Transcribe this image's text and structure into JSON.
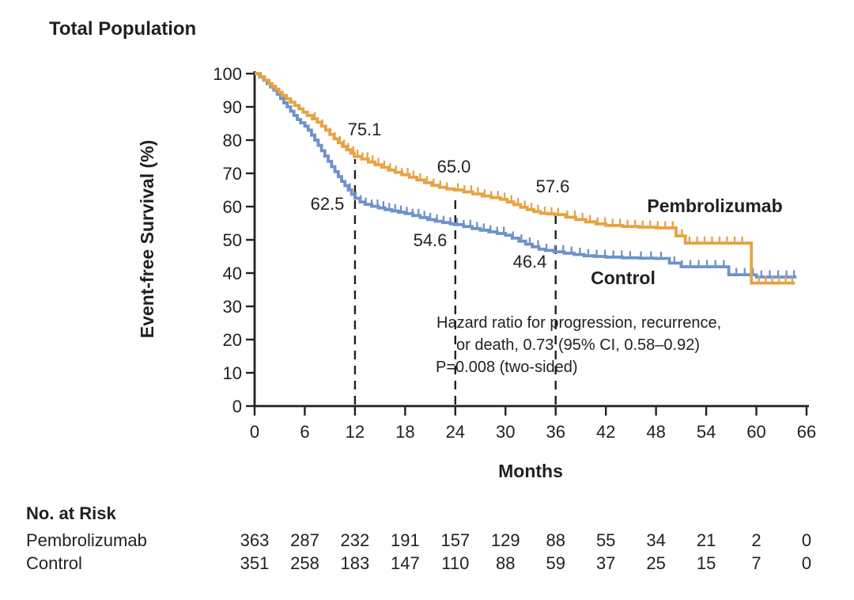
{
  "chart_data": {
    "type": "line",
    "subtype": "kaplan-meier-step",
    "title": "Total Population",
    "xlabel": "Months",
    "ylabel": "Event-free Survival (%)",
    "xlim": [
      0,
      66
    ],
    "ylim": [
      0,
      100
    ],
    "xticks": [
      0,
      6,
      12,
      18,
      24,
      30,
      36,
      42,
      48,
      54,
      60,
      66
    ],
    "yticks": [
      0,
      10,
      20,
      30,
      40,
      50,
      60,
      70,
      80,
      90,
      100
    ],
    "grid": false,
    "milestone_months": [
      12,
      24,
      36
    ],
    "ink_color": "#231f20",
    "series": [
      {
        "name": "Pembrolizumab",
        "color": "#E8A243",
        "milestone_values": [
          "75.1",
          "65.0",
          "57.6"
        ],
        "steps": [
          [
            0,
            100
          ],
          [
            0.7,
            99
          ],
          [
            1.2,
            98
          ],
          [
            1.7,
            97
          ],
          [
            2.1,
            96.2
          ],
          [
            2.5,
            95.3
          ],
          [
            2.9,
            94.4
          ],
          [
            3.3,
            93.4
          ],
          [
            3.8,
            92.4
          ],
          [
            4.3,
            91.4
          ],
          [
            4.8,
            90.4
          ],
          [
            5.3,
            89.4
          ],
          [
            5.8,
            88.4
          ],
          [
            6.3,
            87.4
          ],
          [
            6.9,
            86.4
          ],
          [
            7.5,
            85.4
          ],
          [
            8,
            84.2
          ],
          [
            8.5,
            83
          ],
          [
            9,
            81.7
          ],
          [
            9.5,
            80.4
          ],
          [
            10,
            79.2
          ],
          [
            10.5,
            78.1
          ],
          [
            11,
            77.1
          ],
          [
            11.5,
            76.1
          ],
          [
            11.9,
            75.1
          ],
          [
            12.8,
            74.3
          ],
          [
            13.6,
            73.4
          ],
          [
            14.4,
            72.6
          ],
          [
            15.2,
            71.8
          ],
          [
            16,
            71
          ],
          [
            16.8,
            70.3
          ],
          [
            17.6,
            69.6
          ],
          [
            18.5,
            68.8
          ],
          [
            19.4,
            68
          ],
          [
            20.3,
            67.2
          ],
          [
            21.2,
            66.4
          ],
          [
            22.1,
            65.8
          ],
          [
            23,
            65.3
          ],
          [
            23.9,
            65
          ],
          [
            25,
            64.4
          ],
          [
            26.1,
            63.8
          ],
          [
            27.2,
            63.2
          ],
          [
            28.3,
            62.7
          ],
          [
            29.4,
            62.2
          ],
          [
            30.2,
            61.4
          ],
          [
            31,
            60.6
          ],
          [
            31.8,
            59.8
          ],
          [
            32.6,
            59.1
          ],
          [
            33.4,
            58.5
          ],
          [
            34.2,
            58
          ],
          [
            35,
            57.8
          ],
          [
            35.9,
            57.6
          ],
          [
            37.2,
            56.8
          ],
          [
            38.4,
            56.1
          ],
          [
            39.6,
            55.4
          ],
          [
            40.8,
            54.8
          ],
          [
            42,
            54.3
          ],
          [
            44,
            54
          ],
          [
            46,
            53.8
          ],
          [
            48,
            53.6
          ],
          [
            50.4,
            51.2
          ],
          [
            51.5,
            49
          ],
          [
            59.4,
            37
          ],
          [
            64.6,
            37
          ]
        ],
        "censor_months": [
          7.2,
          8.1,
          9,
          9.6,
          10.2,
          10.7,
          11.2,
          11.8,
          12.3,
          12.9,
          13.5,
          14.1,
          14.8,
          15.5,
          16.2,
          16.9,
          17.6,
          18.3,
          19,
          19.8,
          20.6,
          21.4,
          22.2,
          23,
          24.3,
          25.1,
          25.9,
          26.7,
          27.5,
          28.3,
          29.1,
          29.9,
          30.7,
          31.5,
          32.3,
          33.1,
          33.9,
          34.7,
          35.5,
          36.3,
          37.4,
          38.3,
          39.2,
          40.1,
          41,
          41.9,
          42.8,
          43.7,
          44.6,
          45.5,
          46.4,
          47.3,
          48.2,
          49.1,
          50,
          51.1,
          52,
          52.9,
          53.8,
          54.7,
          55.6,
          56.5,
          57.4,
          58.3,
          60.3,
          61.1,
          61.9,
          62.7,
          63.5,
          64.3
        ]
      },
      {
        "name": "Control",
        "color": "#6E92CA",
        "milestone_values": [
          "62.5",
          "54.6",
          "46.4"
        ],
        "steps": [
          [
            0,
            100
          ],
          [
            0.6,
            99
          ],
          [
            1.1,
            98
          ],
          [
            1.5,
            97
          ],
          [
            1.9,
            96
          ],
          [
            2.3,
            95
          ],
          [
            2.7,
            93.8
          ],
          [
            3.1,
            92.5
          ],
          [
            3.5,
            91.2
          ],
          [
            3.9,
            90
          ],
          [
            4.3,
            88.7
          ],
          [
            4.7,
            87.4
          ],
          [
            5.1,
            86.2
          ],
          [
            5.5,
            85.2
          ],
          [
            6,
            84.2
          ],
          [
            6.4,
            83
          ],
          [
            6.8,
            81.5
          ],
          [
            7.2,
            80
          ],
          [
            7.6,
            78.4
          ],
          [
            8,
            76.8
          ],
          [
            8.4,
            75.2
          ],
          [
            8.8,
            73.6
          ],
          [
            9.2,
            72
          ],
          [
            9.6,
            70.5
          ],
          [
            10,
            69
          ],
          [
            10.4,
            67.6
          ],
          [
            10.8,
            66.3
          ],
          [
            11.2,
            65
          ],
          [
            11.6,
            63.7
          ],
          [
            12,
            62.5
          ],
          [
            12.6,
            61.4
          ],
          [
            13.2,
            60.7
          ],
          [
            14,
            60.1
          ],
          [
            14.8,
            59.6
          ],
          [
            15.6,
            59.1
          ],
          [
            16.4,
            58.7
          ],
          [
            17.2,
            58.3
          ],
          [
            18,
            57.9
          ],
          [
            18.9,
            57.3
          ],
          [
            19.8,
            56.7
          ],
          [
            20.7,
            56.1
          ],
          [
            21.6,
            55.6
          ],
          [
            22.5,
            55.2
          ],
          [
            23.4,
            54.8
          ],
          [
            23.9,
            54.6
          ],
          [
            25,
            54
          ],
          [
            26,
            53.4
          ],
          [
            27,
            52.9
          ],
          [
            28,
            52.4
          ],
          [
            29,
            51.9
          ],
          [
            30,
            51.4
          ],
          [
            30.8,
            50.5
          ],
          [
            31.6,
            49.6
          ],
          [
            32.4,
            48.7
          ],
          [
            33.2,
            47.9
          ],
          [
            34,
            47.2
          ],
          [
            34.8,
            46.8
          ],
          [
            35.8,
            46.4
          ],
          [
            37,
            46
          ],
          [
            38.2,
            45.6
          ],
          [
            39.4,
            45.2
          ],
          [
            40.6,
            45
          ],
          [
            42,
            44.8
          ],
          [
            44,
            44.6
          ],
          [
            46,
            44.5
          ],
          [
            48,
            44.4
          ],
          [
            49.6,
            43
          ],
          [
            51,
            41.9
          ],
          [
            56.7,
            39.5
          ],
          [
            60,
            38.8
          ],
          [
            64.8,
            38.8
          ]
        ],
        "censor_months": [
          11.4,
          12.1,
          12.7,
          13.3,
          14,
          14.7,
          15.4,
          16.1,
          16.8,
          17.5,
          18.2,
          18.9,
          19.6,
          20.3,
          21,
          21.8,
          22.6,
          23.4,
          24.2,
          25,
          25.8,
          26.6,
          27.4,
          28.2,
          29,
          29.8,
          30.9,
          31.9,
          32.9,
          33.9,
          34.9,
          35.9,
          36.9,
          37.9,
          38.9,
          39.9,
          40.9,
          41.9,
          42.9,
          43.9,
          44.9,
          46.2,
          47.4,
          48.6,
          50.2,
          51.1,
          52.1,
          53.1,
          54.1,
          55.1,
          56.1,
          57.6,
          58.6,
          59.6,
          60.6,
          61.6,
          62.6,
          63.6,
          64.5
        ]
      }
    ],
    "hazard_annotation": {
      "line1": "Hazard ratio for progression, recurrence,",
      "line2": "or death, 0.73 (95% CI, 0.58–0.92)",
      "line3": "P=0.008 (two-sided)"
    },
    "risk_table": {
      "header": "No. at Risk",
      "rows": [
        {
          "label": "Pembrolizumab",
          "values": [
            363,
            287,
            232,
            191,
            157,
            129,
            88,
            55,
            34,
            21,
            2,
            0
          ]
        },
        {
          "label": "Control",
          "values": [
            351,
            258,
            183,
            147,
            110,
            88,
            59,
            37,
            25,
            15,
            7,
            0
          ]
        }
      ]
    }
  }
}
